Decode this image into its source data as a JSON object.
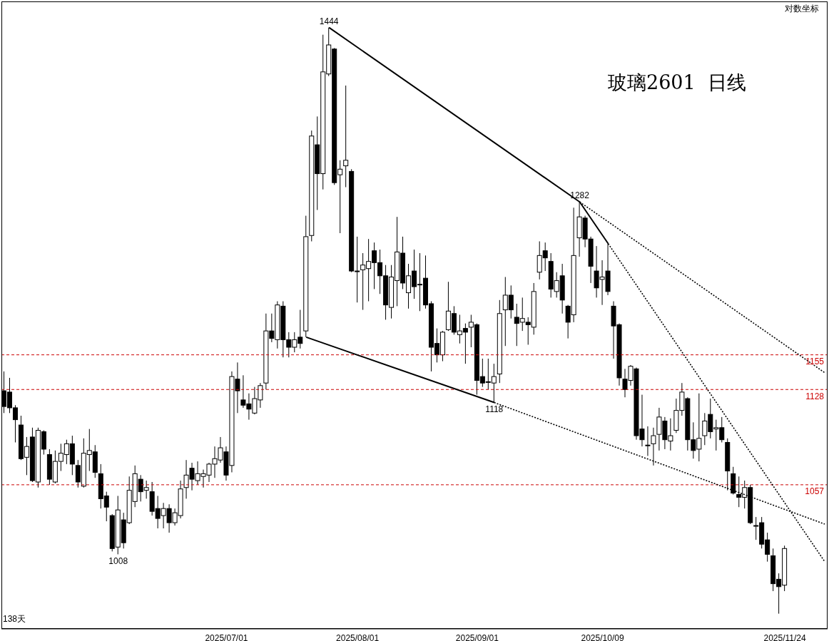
{
  "chart_data": {
    "type": "candlestick",
    "title": "玻璃2601  日线",
    "log": true,
    "ylim": [
      958,
      1470
    ],
    "annotations": [
      "对数坐标",
      "138天",
      {
        "text": "1444",
        "y": 1444
      },
      {
        "text": "1282",
        "y": 1282
      },
      {
        "text": "1118",
        "y": 1118
      },
      {
        "text": "1008",
        "y": 1008
      }
    ],
    "ref_lines": [
      {
        "axis": "y",
        "value": 1155,
        "label": "1155",
        "color": "#cc0000",
        "line_style": "dashed"
      },
      {
        "axis": "y",
        "value": 1128,
        "label": "1128",
        "color": "#cc0000",
        "line_style": "dashed"
      },
      {
        "axis": "y",
        "value": 1057,
        "label": "1057",
        "color": "#cc0000",
        "line_style": "dashed"
      }
    ],
    "categories": [
      null,
      null,
      null,
      null,
      null,
      null,
      null,
      null,
      null,
      null,
      null,
      null,
      null,
      null,
      null,
      null,
      null,
      null,
      null,
      null,
      null,
      null,
      null,
      null,
      null,
      null,
      null,
      null,
      null,
      null,
      null,
      null,
      null,
      null,
      null,
      null,
      null,
      null,
      null,
      "2025/07/01",
      null,
      null,
      null,
      null,
      null,
      null,
      null,
      null,
      null,
      null,
      null,
      null,
      null,
      null,
      null,
      null,
      null,
      null,
      null,
      null,
      null,
      null,
      "2025/08/01",
      null,
      null,
      null,
      null,
      null,
      null,
      null,
      null,
      null,
      null,
      null,
      null,
      null,
      null,
      null,
      null,
      null,
      null,
      null,
      null,
      "2025/09/01",
      null,
      null,
      null,
      null,
      null,
      null,
      null,
      null,
      null,
      null,
      null,
      null,
      null,
      null,
      null,
      null,
      null,
      null,
      null,
      null,
      null,
      "2025/10/09",
      null,
      null,
      null,
      null,
      null,
      null,
      null,
      null,
      null,
      null,
      null,
      null,
      null,
      null,
      null,
      null,
      null,
      null,
      null,
      null,
      null,
      null,
      null,
      null,
      null,
      null,
      null,
      null,
      null,
      null,
      null,
      "2025/11/24",
      null,
      null,
      null,
      null,
      null,
      null,
      null
    ],
    "ohlc": [
      [
        1127,
        1142,
        1110,
        1115
      ],
      [
        1126,
        1137,
        1110,
        1114
      ],
      [
        1114,
        1116,
        1088,
        1105
      ],
      [
        1101,
        1108,
        1075,
        1076
      ],
      [
        1077,
        1092,
        1064,
        1085
      ],
      [
        1092,
        1099,
        1059,
        1060
      ],
      [
        1059,
        1099,
        1055,
        1097
      ],
      [
        1096,
        1097,
        1079,
        1083
      ],
      [
        1079,
        1083,
        1057,
        1061
      ],
      [
        1059,
        1082,
        1058,
        1074
      ],
      [
        1074,
        1087,
        1067,
        1080
      ],
      [
        1079,
        1090,
        1072,
        1087
      ],
      [
        1087,
        1093,
        1064,
        1072
      ],
      [
        1071,
        1075,
        1055,
        1059
      ],
      [
        1056,
        1091,
        1055,
        1080
      ],
      [
        1079,
        1098,
        1067,
        1082
      ],
      [
        1081,
        1086,
        1062,
        1066
      ],
      [
        1065,
        1072,
        1040,
        1047
      ],
      [
        1049,
        1052,
        1031,
        1041
      ],
      [
        1035,
        1036,
        1010,
        1012
      ],
      [
        1013,
        1049,
        1008,
        1039
      ],
      [
        1032,
        1037,
        1012,
        1016
      ],
      [
        1030,
        1063,
        1029,
        1053
      ],
      [
        1045,
        1071,
        1041,
        1065
      ],
      [
        1061,
        1064,
        1045,
        1052
      ],
      [
        1053,
        1060,
        1047,
        1055
      ],
      [
        1052,
        1059,
        1035,
        1038
      ],
      [
        1040,
        1049,
        1026,
        1033
      ],
      [
        1035,
        1044,
        1026,
        1040
      ],
      [
        1040,
        1043,
        1023,
        1030
      ],
      [
        1030,
        1040,
        1028,
        1037
      ],
      [
        1035,
        1060,
        1033,
        1054
      ],
      [
        1055,
        1075,
        1047,
        1064
      ],
      [
        1069,
        1073,
        1053,
        1061
      ],
      [
        1060,
        1074,
        1057,
        1065
      ],
      [
        1063,
        1068,
        1055,
        1065
      ],
      [
        1064,
        1073,
        1059,
        1072
      ],
      [
        1072,
        1085,
        1062,
        1076
      ],
      [
        1075,
        1092,
        1073,
        1084
      ],
      [
        1081,
        1085,
        1060,
        1064
      ],
      [
        1071,
        1142,
        1066,
        1138
      ],
      [
        1136,
        1149,
        1110,
        1127
      ],
      [
        1120,
        1139,
        1114,
        1116
      ],
      [
        1117,
        1125,
        1105,
        1113
      ],
      [
        1110,
        1130,
        1109,
        1121
      ],
      [
        1120,
        1133,
        1114,
        1131
      ],
      [
        1133,
        1188,
        1128,
        1174
      ],
      [
        1174,
        1188,
        1165,
        1168
      ],
      [
        1167,
        1198,
        1160,
        1195
      ],
      [
        1194,
        1198,
        1153,
        1167
      ],
      [
        1167,
        1173,
        1153,
        1161
      ],
      [
        1161,
        1173,
        1157,
        1167
      ],
      [
        1169,
        1191,
        1160,
        1164
      ],
      [
        1174,
        1270,
        1169,
        1252
      ],
      [
        1253,
        1346,
        1248,
        1341
      ],
      [
        1333,
        1359,
        1275,
        1307
      ],
      [
        1307,
        1437,
        1293,
        1401
      ],
      [
        1399,
        1444,
        1397,
        1427
      ],
      [
        1423,
        1424,
        1297,
        1299
      ],
      [
        1306,
        1319,
        1255,
        1311
      ],
      [
        1314,
        1388,
        1295,
        1319
      ],
      [
        1309,
        1311,
        1222,
        1223
      ],
      [
        1223,
        1252,
        1197,
        1223
      ],
      [
        1224,
        1238,
        1191,
        1228
      ],
      [
        1225,
        1250,
        1198,
        1231
      ],
      [
        1240,
        1247,
        1208,
        1230
      ],
      [
        1230,
        1241,
        1204,
        1219
      ],
      [
        1219,
        1228,
        1183,
        1195
      ],
      [
        1193,
        1228,
        1184,
        1218
      ],
      [
        1215,
        1269,
        1194,
        1239
      ],
      [
        1238,
        1252,
        1208,
        1213
      ],
      [
        1205,
        1229,
        1192,
        1219
      ],
      [
        1223,
        1241,
        1200,
        1210
      ],
      [
        1212,
        1238,
        1190,
        1212
      ],
      [
        1217,
        1236,
        1192,
        1195
      ],
      [
        1196,
        1198,
        1142,
        1161
      ],
      [
        1164,
        1176,
        1149,
        1155
      ],
      [
        1155,
        1174,
        1150,
        1173
      ],
      [
        1175,
        1214,
        1174,
        1190
      ],
      [
        1188,
        1194,
        1171,
        1173
      ],
      [
        1171,
        1187,
        1164,
        1174
      ],
      [
        1176,
        1180,
        1148,
        1173
      ],
      [
        1177,
        1187,
        1161,
        1181
      ],
      [
        1179,
        1180,
        1124,
        1135
      ],
      [
        1138,
        1152,
        1130,
        1133
      ],
      [
        1134,
        1152,
        1128,
        1134
      ],
      [
        1133,
        1148,
        1118,
        1138
      ],
      [
        1140,
        1199,
        1133,
        1188
      ],
      [
        1191,
        1218,
        1162,
        1203
      ],
      [
        1203,
        1211,
        1184,
        1191
      ],
      [
        1185,
        1196,
        1162,
        1180
      ],
      [
        1181,
        1201,
        1174,
        1184
      ],
      [
        1181,
        1185,
        1163,
        1179
      ],
      [
        1177,
        1213,
        1171,
        1206
      ],
      [
        1222,
        1248,
        1216,
        1236
      ],
      [
        1240,
        1247,
        1223,
        1234
      ],
      [
        1231,
        1238,
        1201,
        1208
      ],
      [
        1206,
        1222,
        1201,
        1215
      ],
      [
        1219,
        1229,
        1188,
        1199
      ],
      [
        1194,
        1195,
        1168,
        1181
      ],
      [
        1187,
        1277,
        1181,
        1236
      ],
      [
        1251,
        1282,
        1235,
        1269
      ],
      [
        1268,
        1270,
        1243,
        1250
      ],
      [
        1250,
        1252,
        1213,
        1227
      ],
      [
        1223,
        1244,
        1201,
        1209
      ],
      [
        1216,
        1232,
        1195,
        1218
      ],
      [
        1223,
        1246,
        1203,
        1206
      ],
      [
        1194,
        1198,
        1152,
        1178
      ],
      [
        1179,
        1180,
        1131,
        1137
      ],
      [
        1136,
        1144,
        1122,
        1128
      ],
      [
        1135,
        1147,
        1131,
        1146
      ],
      [
        1144,
        1145,
        1090,
        1093
      ],
      [
        1098,
        1124,
        1085,
        1090
      ],
      [
        1086,
        1100,
        1078,
        1086
      ],
      [
        1087,
        1099,
        1071,
        1093
      ],
      [
        1094,
        1114,
        1082,
        1107
      ],
      [
        1104,
        1107,
        1083,
        1090
      ],
      [
        1089,
        1106,
        1082,
        1093
      ],
      [
        1097,
        1121,
        1095,
        1112
      ],
      [
        1112,
        1133,
        1108,
        1126
      ],
      [
        1121,
        1122,
        1082,
        1090
      ],
      [
        1090,
        1103,
        1076,
        1082
      ],
      [
        1083,
        1125,
        1074,
        1091
      ],
      [
        1093,
        1110,
        1086,
        1104
      ],
      [
        1109,
        1121,
        1091,
        1096
      ],
      [
        1098,
        1105,
        1082,
        1099
      ],
      [
        1099,
        1107,
        1088,
        1090
      ],
      [
        1088,
        1091,
        1053,
        1067
      ],
      [
        1065,
        1070,
        1050,
        1051
      ],
      [
        1050,
        1063,
        1041,
        1048
      ],
      [
        1048,
        1060,
        1040,
        1055
      ],
      [
        1055,
        1057,
        1029,
        1030
      ],
      [
        1028,
        1034,
        1018,
        1028
      ],
      [
        1030,
        1034,
        1012,
        1015
      ],
      [
        1018,
        1023,
        1003,
        1008
      ],
      [
        1007,
        1012,
        983,
        988
      ],
      [
        991,
        995,
        968,
        986
      ],
      [
        987,
        1014,
        983,
        1012
      ],
      null,
      null,
      null,
      null,
      null,
      null,
      null
    ],
    "series": [
      {
        "type": "line",
        "color": "#000000",
        "line_style": "solid",
        "values": [
          null,
          null,
          null,
          null,
          null,
          null,
          null,
          null,
          null,
          null,
          null,
          null,
          null,
          null,
          null,
          null,
          null,
          null,
          null,
          null,
          null,
          null,
          null,
          null,
          null,
          null,
          null,
          null,
          null,
          null,
          null,
          null,
          null,
          null,
          null,
          null,
          null,
          null,
          null,
          null,
          null,
          null,
          null,
          null,
          null,
          null,
          null,
          null,
          null,
          null,
          null,
          null,
          null,
          null,
          null,
          null,
          null,
          1444,
          null,
          null,
          null,
          null,
          null,
          null,
          null,
          null,
          null,
          null,
          null,
          null,
          null,
          null,
          null,
          null,
          null,
          null,
          null,
          null,
          null,
          null,
          null,
          null,
          null,
          null,
          null,
          null,
          null,
          null,
          null,
          null,
          null,
          null,
          null,
          null,
          null,
          null,
          null,
          null,
          null,
          null,
          null,
          1282,
          null,
          null,
          null,
          null,
          1246,
          null,
          null,
          null,
          null,
          null,
          null,
          null,
          null,
          null,
          null,
          null,
          null,
          null,
          null,
          null,
          null,
          null,
          null,
          null,
          null,
          null,
          null,
          null,
          null,
          null,
          null,
          null,
          null,
          null,
          null,
          null,
          null,
          null,
          null,
          null,
          null,
          null,
          null
        ]
      },
      {
        "type": "line",
        "color": "#000000",
        "line_style": "dotted",
        "values": [
          null,
          null,
          null,
          null,
          null,
          null,
          null,
          null,
          null,
          null,
          null,
          null,
          null,
          null,
          null,
          null,
          null,
          null,
          null,
          null,
          null,
          null,
          null,
          null,
          null,
          null,
          null,
          null,
          null,
          null,
          null,
          null,
          null,
          null,
          null,
          null,
          null,
          null,
          null,
          null,
          null,
          null,
          null,
          null,
          null,
          null,
          null,
          null,
          null,
          null,
          null,
          null,
          null,
          null,
          null,
          null,
          null,
          null,
          null,
          null,
          null,
          null,
          null,
          null,
          null,
          null,
          null,
          null,
          null,
          null,
          null,
          null,
          null,
          null,
          null,
          null,
          null,
          null,
          null,
          null,
          null,
          null,
          null,
          null,
          null,
          null,
          null,
          null,
          null,
          null,
          null,
          null,
          null,
          null,
          null,
          null,
          null,
          null,
          null,
          null,
          null,
          1282,
          null,
          null,
          null,
          null,
          null,
          null,
          null,
          null,
          null,
          null,
          null,
          null,
          null,
          null,
          null,
          null,
          null,
          null,
          null,
          null,
          null,
          null,
          null,
          null,
          null,
          null,
          null,
          null,
          null,
          null,
          null,
          null,
          null,
          null,
          null,
          null,
          null,
          null,
          null,
          null,
          null,
          null,
          1141
        ]
      },
      {
        "type": "line",
        "color": "#000000",
        "line_style": "dotted",
        "values": [
          null,
          null,
          null,
          null,
          null,
          null,
          null,
          null,
          null,
          null,
          null,
          null,
          null,
          null,
          null,
          null,
          null,
          null,
          null,
          null,
          null,
          null,
          null,
          null,
          null,
          null,
          null,
          null,
          null,
          null,
          null,
          null,
          null,
          null,
          null,
          null,
          null,
          null,
          null,
          null,
          null,
          null,
          null,
          null,
          null,
          null,
          null,
          null,
          null,
          null,
          null,
          null,
          null,
          null,
          null,
          null,
          null,
          null,
          null,
          null,
          null,
          null,
          null,
          null,
          null,
          null,
          null,
          null,
          null,
          null,
          null,
          null,
          null,
          null,
          null,
          null,
          null,
          null,
          null,
          null,
          null,
          null,
          null,
          null,
          null,
          null,
          null,
          null,
          null,
          null,
          null,
          null,
          null,
          null,
          null,
          null,
          null,
          null,
          null,
          null,
          null,
          null,
          null,
          null,
          null,
          null,
          1246,
          null,
          null,
          null,
          null,
          null,
          null,
          null,
          null,
          null,
          null,
          null,
          null,
          null,
          null,
          null,
          null,
          null,
          null,
          null,
          null,
          null,
          null,
          null,
          null,
          null,
          null,
          null,
          null,
          null,
          null,
          null,
          null,
          null,
          null,
          null,
          null,
          null,
          1003
        ]
      },
      {
        "type": "line",
        "color": "#000000",
        "line_style": "solid",
        "values": [
          null,
          null,
          null,
          null,
          null,
          null,
          null,
          null,
          null,
          null,
          null,
          null,
          null,
          null,
          null,
          null,
          null,
          null,
          null,
          null,
          null,
          null,
          null,
          null,
          null,
          null,
          null,
          null,
          null,
          null,
          null,
          null,
          null,
          null,
          null,
          null,
          null,
          null,
          null,
          null,
          null,
          null,
          null,
          null,
          null,
          null,
          null,
          null,
          null,
          null,
          null,
          null,
          null,
          1169,
          null,
          null,
          null,
          null,
          null,
          null,
          null,
          null,
          null,
          null,
          null,
          null,
          null,
          null,
          null,
          null,
          null,
          null,
          null,
          null,
          null,
          null,
          null,
          null,
          null,
          null,
          null,
          null,
          null,
          null,
          null,
          null,
          1118,
          null,
          null,
          null,
          null,
          null,
          null,
          null,
          null,
          null,
          null,
          null,
          null,
          null,
          null,
          null,
          null,
          null,
          null,
          null,
          null,
          null,
          null,
          null,
          null,
          null,
          null,
          null,
          null,
          null,
          null,
          null,
          null,
          null,
          null,
          null,
          null,
          null,
          null,
          null,
          null,
          null,
          null,
          null,
          null,
          null,
          null,
          null,
          null,
          null,
          null,
          null,
          null,
          null,
          null,
          null,
          null,
          null,
          null
        ]
      },
      {
        "type": "line",
        "color": "#000000",
        "line_style": "dotted",
        "values": [
          null,
          null,
          null,
          null,
          null,
          null,
          null,
          null,
          null,
          null,
          null,
          null,
          null,
          null,
          null,
          null,
          null,
          null,
          null,
          null,
          null,
          null,
          null,
          null,
          null,
          null,
          null,
          null,
          null,
          null,
          null,
          null,
          null,
          null,
          null,
          null,
          null,
          null,
          null,
          null,
          null,
          null,
          null,
          null,
          null,
          null,
          null,
          null,
          null,
          null,
          null,
          null,
          null,
          null,
          null,
          null,
          null,
          null,
          null,
          null,
          null,
          null,
          null,
          null,
          null,
          null,
          null,
          null,
          null,
          null,
          null,
          null,
          null,
          null,
          null,
          null,
          null,
          null,
          null,
          null,
          null,
          null,
          null,
          null,
          null,
          null,
          1118,
          null,
          null,
          null,
          null,
          null,
          null,
          null,
          null,
          null,
          null,
          null,
          null,
          null,
          null,
          null,
          null,
          null,
          null,
          null,
          null,
          null,
          null,
          null,
          null,
          null,
          null,
          null,
          null,
          null,
          null,
          null,
          null,
          null,
          null,
          null,
          null,
          null,
          null,
          null,
          null,
          null,
          null,
          null,
          null,
          null,
          null,
          null,
          null,
          null,
          null,
          null,
          null,
          null,
          null,
          null,
          null,
          null,
          1029
        ]
      }
    ]
  }
}
